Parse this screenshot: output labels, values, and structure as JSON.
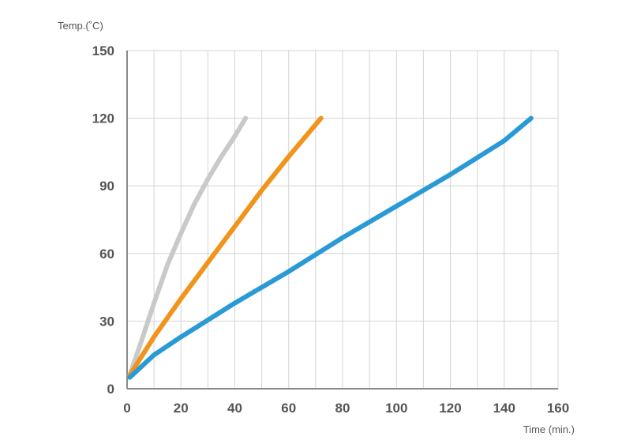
{
  "chart_data": {
    "type": "line",
    "xlabel": "Time (min.)",
    "ylabel": "Temp.(˚C)",
    "xlim": [
      0,
      160
    ],
    "ylim": [
      0,
      150
    ],
    "x_ticks": [
      "0",
      "20",
      "40",
      "60",
      "80",
      "100",
      "120",
      "140",
      "160"
    ],
    "y_ticks": [
      "0",
      "30",
      "60",
      "90",
      "120",
      "150"
    ],
    "grid": true,
    "legend": "none",
    "series": [
      {
        "color": "#c9c9c9",
        "x": [
          1,
          5,
          10,
          15,
          20,
          25,
          30,
          35,
          40,
          44
        ],
        "y": [
          6,
          20,
          38,
          55,
          69,
          82,
          93,
          103,
          112,
          120
        ]
      },
      {
        "color": "#f0941c",
        "x": [
          1,
          10,
          20,
          30,
          40,
          50,
          60,
          72
        ],
        "y": [
          6,
          23,
          40,
          56,
          72,
          88,
          103,
          120
        ]
      },
      {
        "color": "#2a9ad6",
        "x": [
          1,
          10,
          20,
          40,
          60,
          80,
          100,
          120,
          140,
          150
        ],
        "y": [
          5,
          15,
          23,
          38,
          52,
          67,
          81,
          95,
          110,
          120
        ]
      }
    ]
  }
}
